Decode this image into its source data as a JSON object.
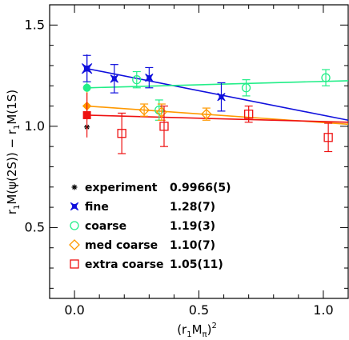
{
  "chart_data": {
    "type": "scatter",
    "xlabel": "(r₁M_π)²",
    "ylabel": "r₁M(ψ(2S)) − r₁M(1S)",
    "xlim": [
      -0.1,
      1.1
    ],
    "ylim": [
      0.15,
      1.6
    ],
    "x_ticks": [
      0,
      0.5,
      1
    ],
    "x_tick_labels": [
      "0.0",
      "0.5",
      "1.0"
    ],
    "y_ticks": [
      0.5,
      1.0,
      1.5
    ],
    "y_tick_labels": [
      "0.5",
      "1.0",
      "1.5"
    ],
    "grid": false,
    "legend_position": "bottom-left",
    "series": [
      {
        "name": "experiment",
        "value_label": "0.9966(5)",
        "color": "#000000",
        "marker": "burst",
        "points": [
          {
            "x": 0.05,
            "y": 0.9966,
            "err": 0.0
          }
        ],
        "fit": null
      },
      {
        "name": "fine",
        "value_label": "1.28(7)",
        "color": "#1010dd",
        "marker": "star",
        "points": [
          {
            "x": 0.05,
            "y": 1.285,
            "err": 0.065
          },
          {
            "x": 0.16,
            "y": 1.235,
            "err": 0.07
          },
          {
            "x": 0.3,
            "y": 1.24,
            "err": 0.05
          },
          {
            "x": 0.59,
            "y": 1.145,
            "err": 0.07
          }
        ],
        "fit": {
          "x": [
            0.05,
            1.1
          ],
          "y": [
            1.285,
            1.03
          ]
        },
        "extrapolated": {
          "x": 0.05,
          "y": 1.285,
          "err": 0.07
        }
      },
      {
        "name": "coarse",
        "value_label": "1.19(3)",
        "color": "#22ee88",
        "marker": "circle",
        "points": [
          {
            "x": 0.25,
            "y": 1.23,
            "err": 0.04
          },
          {
            "x": 0.34,
            "y": 1.08,
            "err": 0.05
          },
          {
            "x": 0.69,
            "y": 1.19,
            "err": 0.04
          },
          {
            "x": 1.01,
            "y": 1.24,
            "err": 0.04
          }
        ],
        "fit": {
          "x": [
            0.05,
            1.1
          ],
          "y": [
            1.19,
            1.225
          ]
        },
        "extrapolated": {
          "x": 0.05,
          "y": 1.19,
          "err": 0.03
        }
      },
      {
        "name": "med coarse",
        "value_label": "1.10(7)",
        "color": "#ff9900",
        "marker": "diamond",
        "points": [
          {
            "x": 0.28,
            "y": 1.08,
            "err": 0.03
          },
          {
            "x": 0.35,
            "y": 1.07,
            "err": 0.04
          },
          {
            "x": 0.53,
            "y": 1.06,
            "err": 0.03
          }
        ],
        "fit": {
          "x": [
            0.05,
            1.1
          ],
          "y": [
            1.1,
            1.01
          ]
        },
        "extrapolated": {
          "x": 0.05,
          "y": 1.1,
          "err": 0.07
        }
      },
      {
        "name": "extra coarse",
        "value_label": "1.05(11)",
        "color": "#ee1111",
        "marker": "square",
        "points": [
          {
            "x": 0.19,
            "y": 0.965,
            "err": 0.1
          },
          {
            "x": 0.36,
            "y": 1.0,
            "err": 0.1
          },
          {
            "x": 0.7,
            "y": 1.06,
            "err": 0.04
          },
          {
            "x": 1.02,
            "y": 0.945,
            "err": 0.07
          }
        ],
        "fit": {
          "x": [
            0.05,
            1.1
          ],
          "y": [
            1.055,
            1.02
          ]
        },
        "extrapolated": {
          "x": 0.05,
          "y": 1.055,
          "err": 0.11
        }
      }
    ]
  }
}
